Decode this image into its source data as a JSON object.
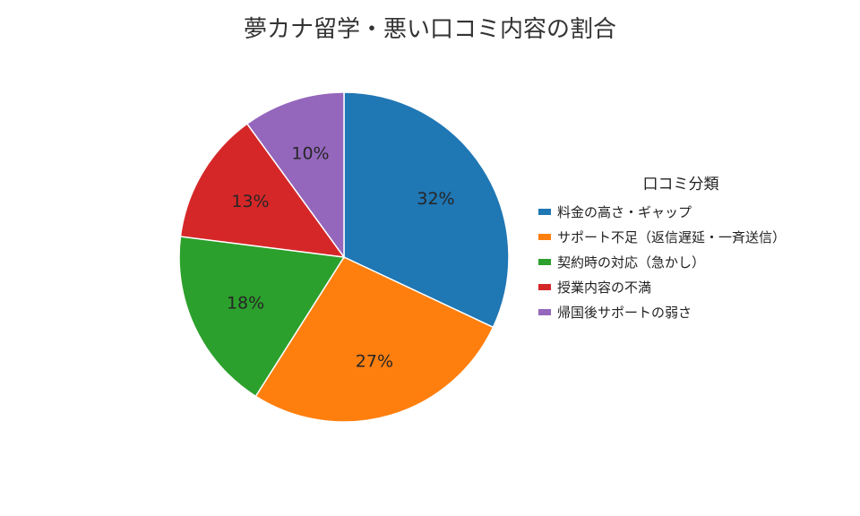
{
  "chart_data": {
    "type": "pie",
    "title": "夢カナ留学・悪い口コミ内容の割合",
    "legend_title": "口コミ分類",
    "legend_position": "right",
    "start_angle": "12 o'clock",
    "direction": "clockwise",
    "label_format": "percent",
    "slices": [
      {
        "label": "料金の高さ・ギャップ",
        "value": 32,
        "display": "32%",
        "color": "#1f77b4"
      },
      {
        "label": "サポート不足（返信遅延・一斉送信）",
        "value": 27,
        "display": "27%",
        "color": "#ff7f0e"
      },
      {
        "label": "契約時の対応（急かし）",
        "value": 18,
        "display": "18%",
        "color": "#2ca02c"
      },
      {
        "label": "授業内容の不満",
        "value": 13,
        "display": "13%",
        "color": "#d62728"
      },
      {
        "label": "帰国後サポートの弱さ",
        "value": 10,
        "display": "10%",
        "color": "#9467bd"
      }
    ]
  }
}
